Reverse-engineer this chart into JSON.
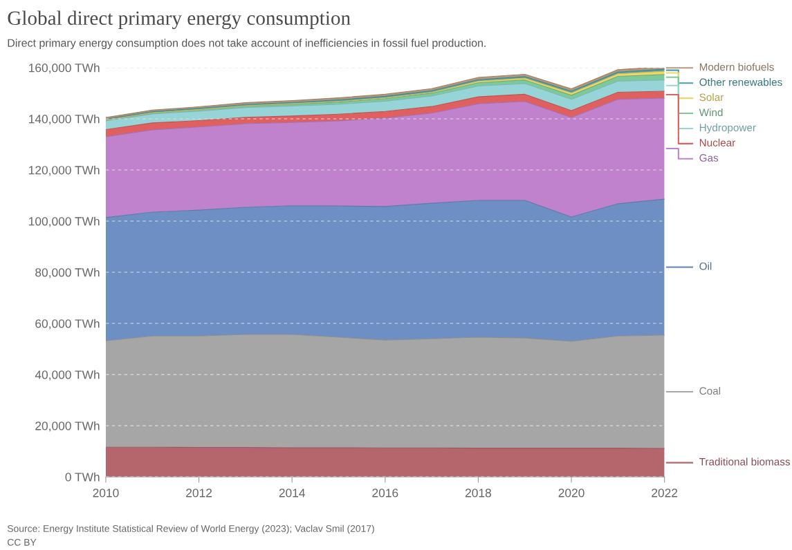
{
  "chart_data": {
    "type": "area",
    "stacked": true,
    "title": "Global direct primary energy consumption",
    "subtitle": "Direct primary energy consumption does not take account of inefficiencies in fossil fuel production.",
    "x": [
      2010,
      2011,
      2012,
      2013,
      2014,
      2015,
      2016,
      2017,
      2018,
      2019,
      2020,
      2021,
      2022
    ],
    "series": [
      {
        "name": "Traditional biomass",
        "color": "#b5666d",
        "values": [
          11600,
          11600,
          11500,
          11500,
          11400,
          11400,
          11300,
          11300,
          11200,
          11200,
          11200,
          11200,
          11100
        ]
      },
      {
        "name": "Coal",
        "color": "#a6a6a6",
        "values": [
          41600,
          43500,
          43600,
          44200,
          44300,
          43200,
          42200,
          42700,
          43400,
          43100,
          41800,
          43900,
          44300
        ]
      },
      {
        "name": "Oil",
        "color": "#6d8fc4",
        "values": [
          48200,
          48400,
          49200,
          49700,
          50300,
          51300,
          52200,
          53000,
          53500,
          53800,
          48600,
          51700,
          53200
        ]
      },
      {
        "name": "Gas",
        "color": "#c082cc",
        "values": [
          31600,
          32200,
          32500,
          32700,
          32600,
          33300,
          34600,
          35200,
          37800,
          38700,
          38900,
          40800,
          39500
        ]
      },
      {
        "name": "Nuclear",
        "color": "#e06060",
        "values": [
          2800,
          2700,
          2500,
          2500,
          2500,
          2600,
          2600,
          2600,
          2700,
          2800,
          2700,
          2800,
          2700
        ]
      },
      {
        "name": "Hydropower",
        "color": "#96d4d8",
        "values": [
          3400,
          3500,
          3700,
          3800,
          3900,
          3900,
          4000,
          4100,
          4200,
          4200,
          4400,
          4300,
          4400
        ]
      },
      {
        "name": "Wind",
        "color": "#7cc99a",
        "values": [
          300,
          400,
          500,
          600,
          700,
          800,
          1000,
          1100,
          1300,
          1400,
          1600,
          1900,
          2100
        ]
      },
      {
        "name": "Solar",
        "color": "#f0d860",
        "values": [
          0,
          100,
          100,
          100,
          200,
          300,
          300,
          400,
          600,
          700,
          900,
          1000,
          1300
        ]
      },
      {
        "name": "Other renewables",
        "color": "#4a9fae",
        "values": [
          400,
          400,
          500,
          500,
          500,
          600,
          600,
          600,
          600,
          600,
          700,
          700,
          800
        ]
      },
      {
        "name": "Modern biofuels",
        "color": "#b9987a",
        "values": [
          600,
          600,
          600,
          700,
          700,
          800,
          800,
          800,
          900,
          900,
          900,
          900,
          1000
        ]
      }
    ],
    "xlim": [
      2010,
      2022
    ],
    "xticks": [
      2010,
      2012,
      2014,
      2016,
      2018,
      2020,
      2022
    ],
    "ylim": [
      0,
      160000
    ],
    "yticks": [
      {
        "value": 0,
        "label": "0 TWh"
      },
      {
        "value": 20000,
        "label": "20,000 TWh"
      },
      {
        "value": 40000,
        "label": "40,000 TWh"
      },
      {
        "value": 60000,
        "label": "60,000 TWh"
      },
      {
        "value": 80000,
        "label": "80,000 TWh"
      },
      {
        "value": 100000,
        "label": "100,000 TWh"
      },
      {
        "value": 120000,
        "label": "120,000 TWh"
      },
      {
        "value": 140000,
        "label": "140,000 TWh"
      },
      {
        "value": 160000,
        "label": "160,000 TWh"
      }
    ],
    "grid": "y",
    "legend": "right",
    "annotations": [
      "Source: Energy Institute Statistical Review of World Energy (2023); Vaclav Smil (2017)",
      "CC BY"
    ]
  }
}
